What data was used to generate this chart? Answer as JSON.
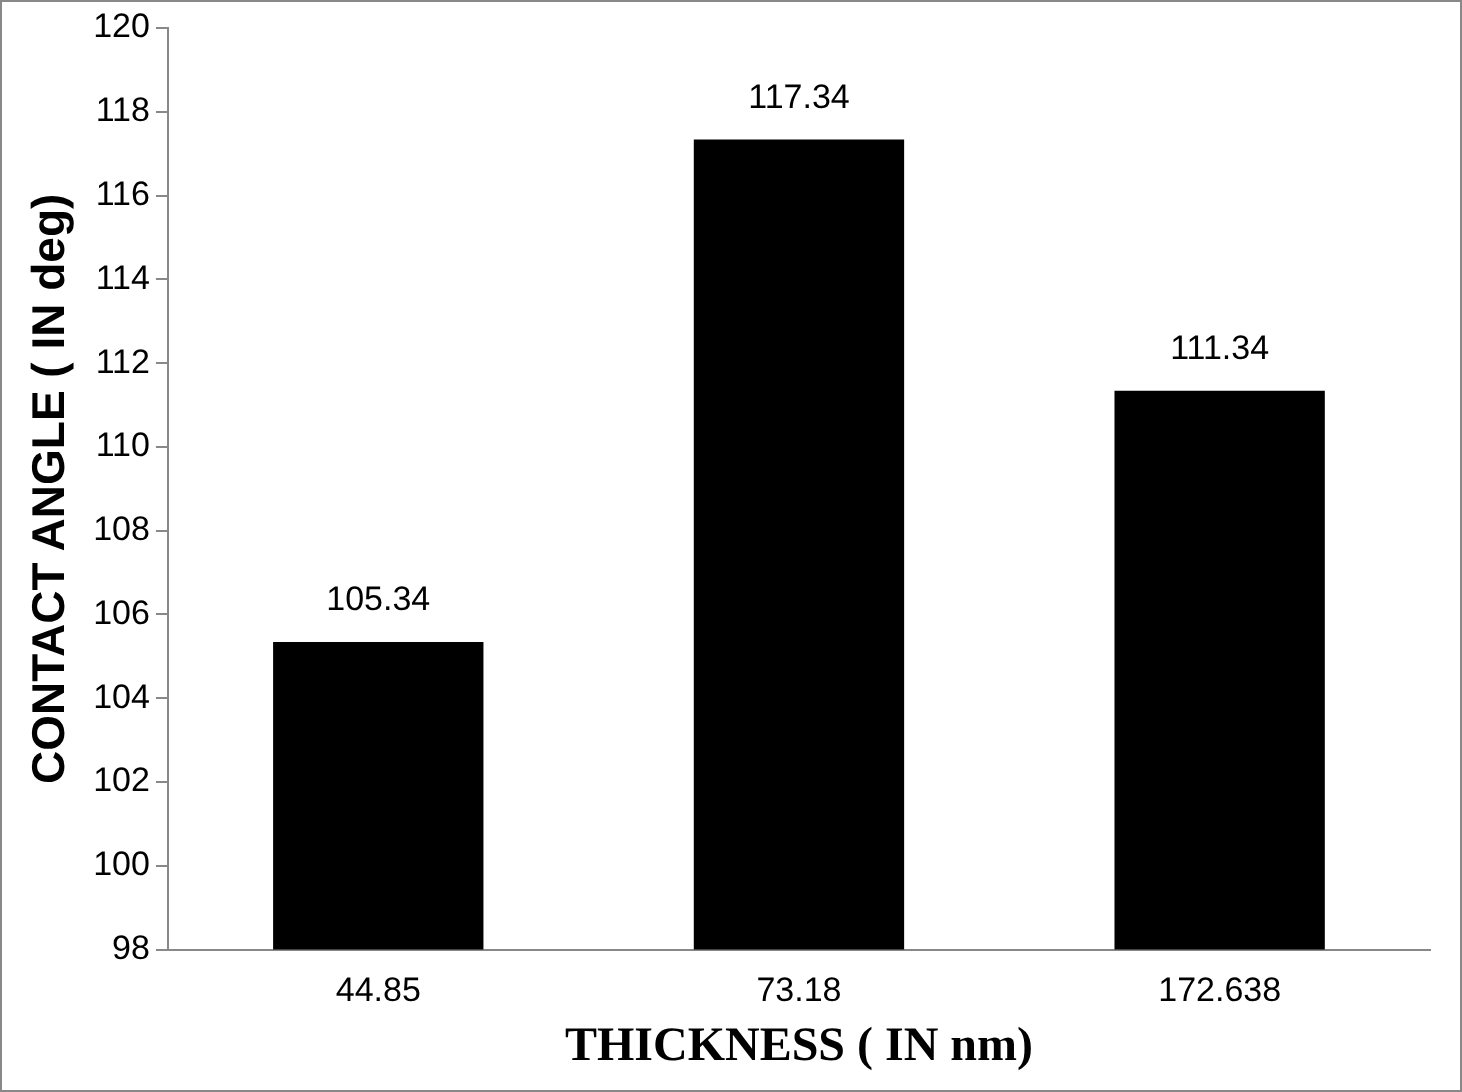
{
  "chart_data": {
    "type": "bar",
    "xlabel": "THICKNESS ( IN nm)",
    "ylabel": "CONTACT ANGLE ( IN deg)",
    "categories": [
      "44.85",
      "73.18",
      "172.638"
    ],
    "values": [
      105.34,
      117.34,
      111.34
    ],
    "color": "#000000",
    "ylim": [
      98,
      120
    ],
    "yticks": [
      98,
      100,
      102,
      104,
      106,
      108,
      110,
      112,
      114,
      116,
      118,
      120
    ],
    "grid": false,
    "legend": false,
    "data_labels": true
  }
}
